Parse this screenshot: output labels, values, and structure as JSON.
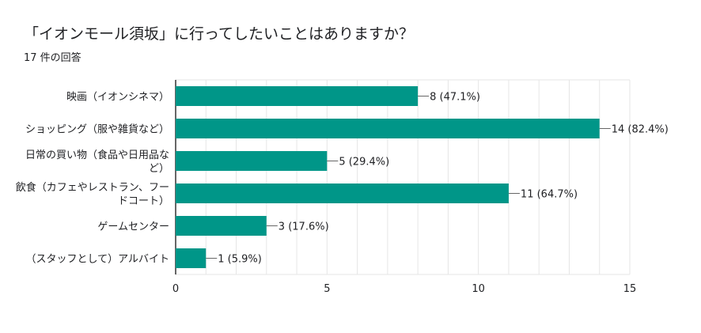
{
  "title": "「イオンモール須坂」に行ってしたいことはありますか？",
  "response_count": "17 件の回答",
  "colors": {
    "bar": "#009688",
    "grid": "#e6e6e6",
    "axis": "#333333",
    "text": "#202124"
  },
  "chart_data": {
    "type": "bar",
    "orientation": "horizontal",
    "categories": [
      [
        "映画（イオンシネマ）"
      ],
      [
        "ショッピング（服や雑貨など）"
      ],
      [
        "日常の買い物（食品や日用品な",
        "ど）"
      ],
      [
        "飲食（カフェやレストラン、フー",
        "ドコート）"
      ],
      [
        "ゲームセンター"
      ],
      [
        "（スタッフとして）アルバイト"
      ]
    ],
    "values": [
      8,
      14,
      5,
      11,
      3,
      1
    ],
    "data_labels": [
      "8 (47.1%)",
      "14 (82.4%)",
      "5 (29.4%)",
      "11 (64.7%)",
      "3 (17.6%)",
      "1 (5.9%)"
    ],
    "xlim": [
      0,
      15
    ],
    "xticks": [
      0,
      5,
      10,
      15
    ],
    "grid": true,
    "legend": "none"
  }
}
